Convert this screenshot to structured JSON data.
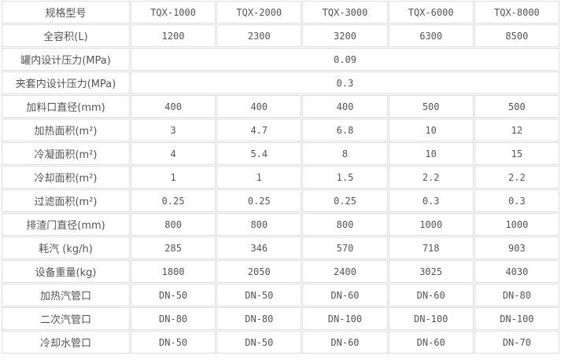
{
  "table": {
    "header": {
      "label": "规格型号",
      "models": [
        "TQX-1000",
        "TQX-2000",
        "TQX-3000",
        "TQX-6000",
        "TQX-8000"
      ]
    },
    "rows": [
      {
        "label": "全容积(L)",
        "values": [
          "1200",
          "2300",
          "3200",
          "6300",
          "8500"
        ]
      },
      {
        "label": "罐内设计压力(MPa)",
        "merged": "0.09"
      },
      {
        "label": "夹套内设计压力(MPa)",
        "merged": "0.3"
      },
      {
        "label": "加料口直径(mm)",
        "values": [
          "400",
          "400",
          "400",
          "500",
          "500"
        ]
      },
      {
        "label": "加热面积(m²)",
        "values": [
          "3",
          "4.7",
          "6.8",
          "10",
          "12"
        ]
      },
      {
        "label": "冷凝面积(m²)",
        "values": [
          "4",
          "5.4",
          "8",
          "10",
          "15"
        ]
      },
      {
        "label": "冷却面积(m²)",
        "values": [
          "1",
          "1",
          "1.5",
          "2.2",
          "2.2"
        ]
      },
      {
        "label": "过滤面积(m²)",
        "values": [
          "0.25",
          "0.25",
          "0.25",
          "0.3",
          "0.3"
        ]
      },
      {
        "label": "排渣门直径(mm)",
        "values": [
          "800",
          "800",
          "800",
          "1000",
          "1000"
        ]
      },
      {
        "label": "耗汽 (kg/h)",
        "values": [
          "285",
          "346",
          "570",
          "718",
          "903"
        ]
      },
      {
        "label": "设备重量(kg)",
        "values": [
          "1800",
          "2050",
          "2400",
          "3025",
          "4030"
        ]
      },
      {
        "label": "加热汽管口",
        "values": [
          "DN-50",
          "DN-50",
          "DN-60",
          "DN-60",
          "DN-80"
        ]
      },
      {
        "label": "二次汽管口",
        "values": [
          "DN-80",
          "DN-80",
          "DN-100",
          "DN-100",
          "DN-100"
        ]
      },
      {
        "label": "冷却水管口",
        "values": [
          "DN-50",
          "DN-50",
          "DN-60",
          "DN-60",
          "DN-70"
        ]
      }
    ]
  }
}
